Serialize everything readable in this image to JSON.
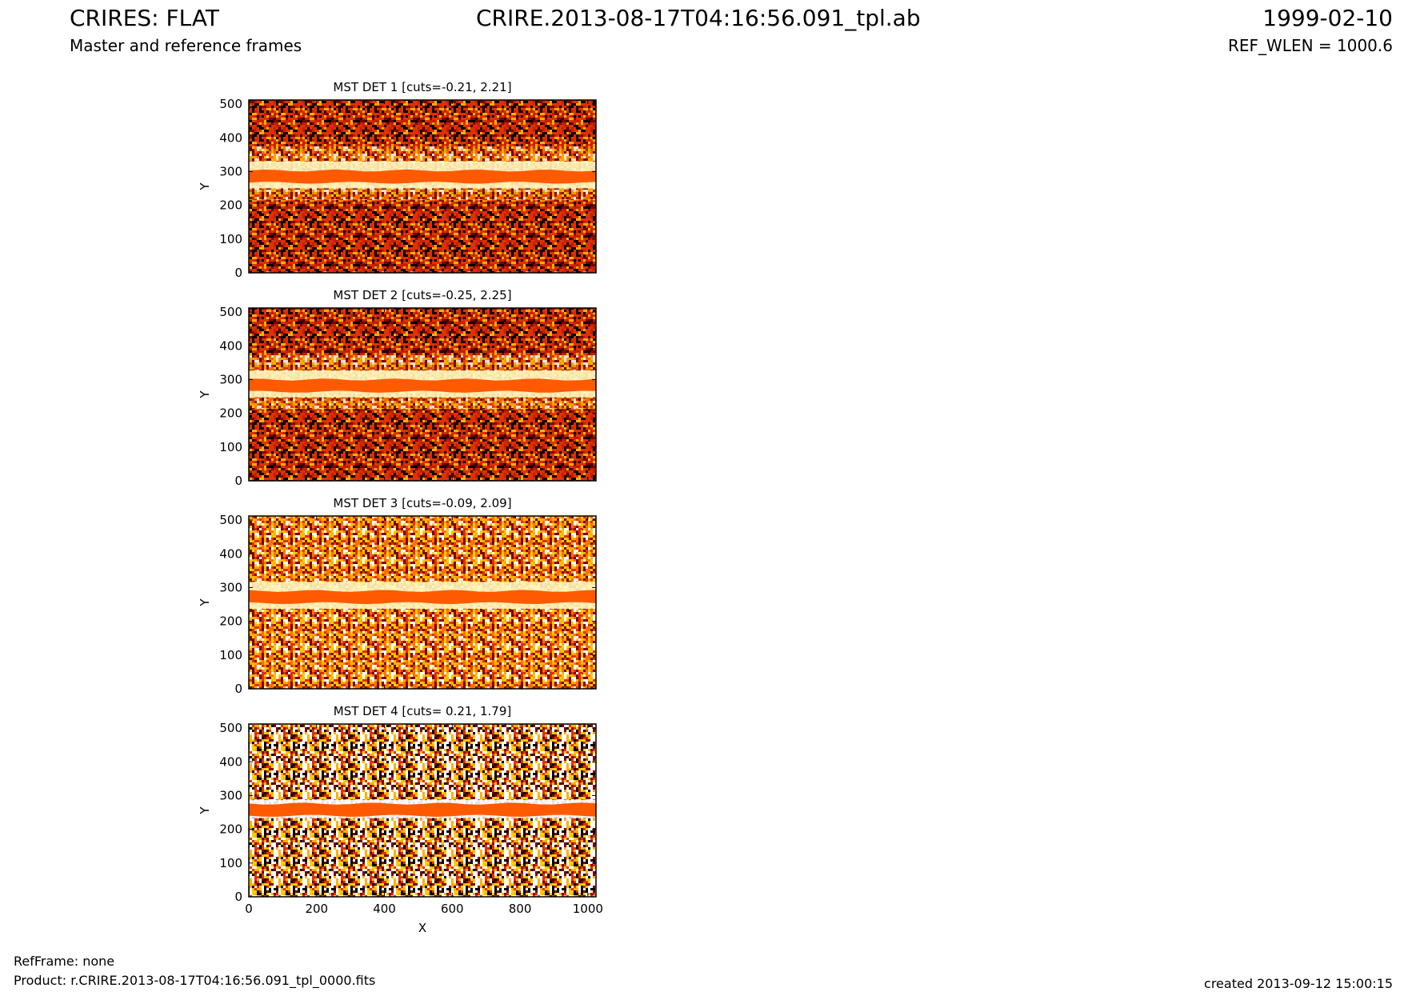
{
  "header": {
    "title_left": "CRIRES: FLAT",
    "subtitle_left": "Master and reference frames",
    "title_center": "CRIRE.2013-08-17T04:16:56.091_tpl.ab",
    "title_right": "1999-02-10",
    "subtitle_right": "REF_WLEN = 1000.6"
  },
  "footer": {
    "refframe": "RefFrame: none",
    "product": "Product: r.CRIRE.2013-08-17T04:16:56.091_tpl_0000.fits",
    "created": "created 2013-09-12 15:00:15"
  },
  "colors": {
    "band": "#ff5a00",
    "dark": "#7a0000",
    "mid": "#e03000",
    "bright": "#ffb000",
    "white": "#ffffff"
  },
  "chart_data": [
    {
      "type": "heatmap",
      "title": "MST DET 1 [cuts=-0.21, 2.21]",
      "ylabel": "Y",
      "xlabel": "",
      "xlim": [
        0,
        1024
      ],
      "ylim": [
        0,
        512
      ],
      "yticks": [
        "0",
        "100",
        "200",
        "300",
        "400",
        "500"
      ],
      "xticks": [],
      "cuts": [
        -0.21,
        2.21
      ]
    },
    {
      "type": "heatmap",
      "title": "MST DET 2 [cuts=-0.25, 2.25]",
      "ylabel": "Y",
      "xlabel": "",
      "xlim": [
        0,
        1024
      ],
      "ylim": [
        0,
        512
      ],
      "yticks": [
        "0",
        "100",
        "200",
        "300",
        "400",
        "500"
      ],
      "xticks": [],
      "cuts": [
        -0.25,
        2.25
      ]
    },
    {
      "type": "heatmap",
      "title": "MST DET 3 [cuts=-0.09, 2.09]",
      "ylabel": "Y",
      "xlabel": "",
      "xlim": [
        0,
        1024
      ],
      "ylim": [
        0,
        512
      ],
      "yticks": [
        "0",
        "100",
        "200",
        "300",
        "400",
        "500"
      ],
      "xticks": [],
      "cuts": [
        -0.09,
        2.09
      ]
    },
    {
      "type": "heatmap",
      "title": "MST DET 4 [cuts= 0.21, 1.79]",
      "ylabel": "Y",
      "xlabel": "X",
      "xlim": [
        0,
        1024
      ],
      "ylim": [
        0,
        512
      ],
      "yticks": [
        "0",
        "100",
        "200",
        "300",
        "400",
        "500"
      ],
      "xticks": [
        "0",
        "200",
        "400",
        "600",
        "800",
        "1000"
      ],
      "cuts": [
        0.21,
        1.79
      ]
    }
  ]
}
